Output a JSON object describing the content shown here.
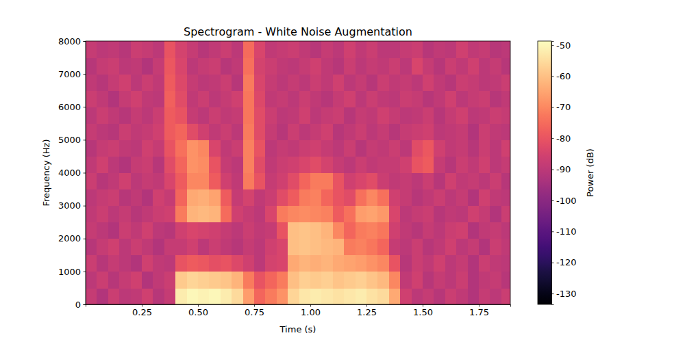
{
  "chart_data": {
    "type": "heatmap",
    "title": "Spectrogram - White Noise Augmentation",
    "x_label": "Time (s)",
    "y_label": "Frequency (Hz)",
    "colorbar_label": "Power (dB)",
    "xlim": [
      0.0,
      1.89
    ],
    "xticks": [
      0.25,
      {
        "value": 0.5,
        "label": "0.50"
      },
      0.75,
      {
        "value": 1.0,
        "label": "1.00"
      },
      1.25,
      {
        "value": 1.5,
        "label": "1.50"
      },
      1.75
    ],
    "ylim": [
      0,
      8000
    ],
    "yticks": [
      0,
      1000,
      2000,
      3000,
      4000,
      5000,
      6000,
      7000,
      8000
    ],
    "clim": [
      -133.5,
      -48.7
    ],
    "cticks": [
      -130,
      -120,
      -110,
      -100,
      -90,
      -80,
      -70,
      -60,
      -50
    ],
    "x": [
      0.025,
      0.075,
      0.125,
      0.175,
      0.225,
      0.275,
      0.325,
      0.375,
      0.425,
      0.475,
      0.525,
      0.575,
      0.625,
      0.675,
      0.725,
      0.775,
      0.825,
      0.875,
      0.925,
      0.975,
      1.025,
      1.075,
      1.125,
      1.175,
      1.225,
      1.275,
      1.325,
      1.375,
      1.425,
      1.475,
      1.525,
      1.575,
      1.625,
      1.675,
      1.725,
      1.775,
      1.825,
      1.875
    ],
    "y": [
      250,
      750,
      1250,
      1750,
      2250,
      2750,
      3250,
      3750,
      4250,
      4750,
      5250,
      5750,
      6250,
      6750,
      7250,
      7750
    ],
    "cells": [
      [
        -88,
        -92,
        -87,
        -90,
        -89,
        -86,
        -91,
        -88,
        -52,
        -50,
        -51,
        -50,
        -52,
        -55,
        -66,
        -76,
        -72,
        -68,
        -56,
        -53,
        -52,
        -53,
        -54,
        -53,
        -52,
        -54,
        -55,
        -64,
        -86,
        -90,
        -88,
        -91,
        -87,
        -89,
        -92,
        -88,
        -90,
        -87
      ],
      [
        -90,
        -87,
        -91,
        -88,
        -86,
        -92,
        -89,
        -87,
        -58,
        -56,
        -57,
        -58,
        -59,
        -62,
        -72,
        -80,
        -76,
        -72,
        -60,
        -57,
        -58,
        -57,
        -59,
        -58,
        -57,
        -59,
        -61,
        -70,
        -89,
        -86,
        -91,
        -88,
        -90,
        -87,
        -92,
        -89,
        -88,
        -91
      ],
      [
        -87,
        -91,
        -88,
        -90,
        -92,
        -86,
        -89,
        -90,
        -80,
        -78,
        -79,
        -81,
        -80,
        -83,
        -86,
        -90,
        -85,
        -84,
        -64,
        -62,
        -63,
        -62,
        -64,
        -65,
        -66,
        -68,
        -70,
        -80,
        -91,
        -87,
        -89,
        -86,
        -90,
        -88,
        -92,
        -87,
        -89,
        -90
      ],
      [
        -91,
        -88,
        -86,
        -90,
        -87,
        -89,
        -92,
        -88,
        -88,
        -86,
        -90,
        -87,
        -89,
        -91,
        -88,
        -90,
        -86,
        -84,
        -60,
        -59,
        -60,
        -61,
        -62,
        -72,
        -71,
        -73,
        -76,
        -88,
        -90,
        -87,
        -91,
        -89,
        -86,
        -90,
        -88,
        -92,
        -87,
        -89
      ],
      [
        -88,
        -90,
        -92,
        -87,
        -89,
        -86,
        -90,
        -91,
        -86,
        -84,
        -85,
        -86,
        -88,
        -90,
        -87,
        -89,
        -88,
        -80,
        -60,
        -59,
        -60,
        -62,
        -70,
        -76,
        -72,
        -71,
        -73,
        -86,
        -89,
        -91,
        -88,
        -90,
        -87,
        -86,
        -92,
        -89,
        -88,
        -90
      ],
      [
        -89,
        -87,
        -90,
        -88,
        -91,
        -89,
        -87,
        -86,
        -72,
        -62,
        -61,
        -62,
        -75,
        -86,
        -88,
        -90,
        -84,
        -72,
        -70,
        -69,
        -70,
        -71,
        -78,
        -74,
        -66,
        -65,
        -67,
        -84,
        -90,
        -88,
        -87,
        -91,
        -89,
        -90,
        -86,
        -88,
        -92,
        -87
      ],
      [
        -90,
        -88,
        -87,
        -91,
        -89,
        -92,
        -86,
        -88,
        -76,
        -64,
        -63,
        -65,
        -78,
        -88,
        -85,
        -89,
        -87,
        -82,
        -78,
        -72,
        -71,
        -76,
        -80,
        -82,
        -74,
        -70,
        -74,
        -86,
        -88,
        -91,
        -89,
        -87,
        -90,
        -88,
        -92,
        -86,
        -89,
        -90
      ],
      [
        -87,
        -91,
        -89,
        -86,
        -90,
        -88,
        -89,
        -84,
        -78,
        -70,
        -70,
        -78,
        -86,
        -89,
        -72,
        -80,
        -88,
        -86,
        -82,
        -76,
        -72,
        -72,
        -80,
        -86,
        -84,
        -82,
        -87,
        -89,
        -88,
        -90,
        -87,
        -91,
        -86,
        -89,
        -88,
        -90,
        -87,
        -91
      ],
      [
        -89,
        -86,
        -90,
        -92,
        -88,
        -87,
        -91,
        -82,
        -76,
        -68,
        -69,
        -80,
        -88,
        -90,
        -71,
        -82,
        -89,
        -87,
        -86,
        -84,
        -82,
        -85,
        -88,
        -90,
        -87,
        -89,
        -88,
        -88,
        -86,
        -80,
        -78,
        -88,
        -91,
        -87,
        -89,
        -86,
        -90,
        -88
      ],
      [
        -91,
        -88,
        -87,
        -89,
        -90,
        -86,
        -88,
        -80,
        -74,
        -68,
        -70,
        -84,
        -89,
        -87,
        -71,
        -80,
        -90,
        -88,
        -89,
        -87,
        -86,
        -88,
        -90,
        -87,
        -91,
        -88,
        -89,
        -87,
        -90,
        -82,
        -79,
        -86,
        -89,
        -88,
        -91,
        -87,
        -90,
        -86
      ],
      [
        -88,
        -90,
        -91,
        -87,
        -89,
        -88,
        -86,
        -78,
        -76,
        -82,
        -86,
        -89,
        -87,
        -90,
        -72,
        -82,
        -88,
        -91,
        -87,
        -90,
        -88,
        -86,
        -91,
        -89,
        -87,
        -90,
        -88,
        -91,
        -88,
        -87,
        -86,
        -90,
        -89,
        -88,
        -92,
        -87,
        -89,
        -90
      ],
      [
        -90,
        -87,
        -89,
        -91,
        -88,
        -90,
        -87,
        -78,
        -80,
        -88,
        -90,
        -87,
        -89,
        -88,
        -73,
        -82,
        -87,
        -90,
        -89,
        -86,
        -90,
        -88,
        -87,
        -91,
        -88,
        -89,
        -86,
        -88,
        -90,
        -89,
        -87,
        -91,
        -88,
        -86,
        -90,
        -89,
        -87,
        -88
      ],
      [
        -87,
        -89,
        -92,
        -88,
        -86,
        -89,
        -90,
        -77,
        -82,
        -89,
        -87,
        -90,
        -88,
        -86,
        -73,
        -83,
        -89,
        -88,
        -90,
        -87,
        -89,
        -91,
        -88,
        -86,
        -90,
        -87,
        -89,
        -90,
        -87,
        -88,
        -91,
        -89,
        -86,
        -90,
        -88,
        -87,
        -91,
        -89
      ],
      [
        -89,
        -91,
        -88,
        -86,
        -90,
        -87,
        -89,
        -78,
        -83,
        -88,
        -90,
        -89,
        -87,
        -91,
        -72,
        -84,
        -88,
        -90,
        -88,
        -90,
        -87,
        -89,
        -86,
        -90,
        -88,
        -91,
        -87,
        -89,
        -88,
        -90,
        -86,
        -89,
        -91,
        -87,
        -88,
        -90,
        -89,
        -87
      ],
      [
        -91,
        -88,
        -87,
        -90,
        -89,
        -92,
        -88,
        -79,
        -84,
        -90,
        -88,
        -87,
        -91,
        -89,
        -74,
        -85,
        -87,
        -89,
        -90,
        -88,
        -86,
        -89,
        -91,
        -87,
        -90,
        -88,
        -89,
        -87,
        -90,
        -84,
        -88,
        -91,
        -87,
        -89,
        -86,
        -90,
        -88,
        -91
      ],
      [
        -88,
        -90,
        -89,
        -91,
        -87,
        -88,
        -90,
        -80,
        -85,
        -88,
        -91,
        -89,
        -87,
        -90,
        -75,
        -84,
        -89,
        -88,
        -87,
        -89,
        -91,
        -88,
        -90,
        -86,
        -89,
        -87,
        -90,
        -90,
        -88,
        -87,
        -91,
        -89,
        -90,
        -86,
        -89,
        -88,
        -91,
        -90
      ]
    ]
  }
}
